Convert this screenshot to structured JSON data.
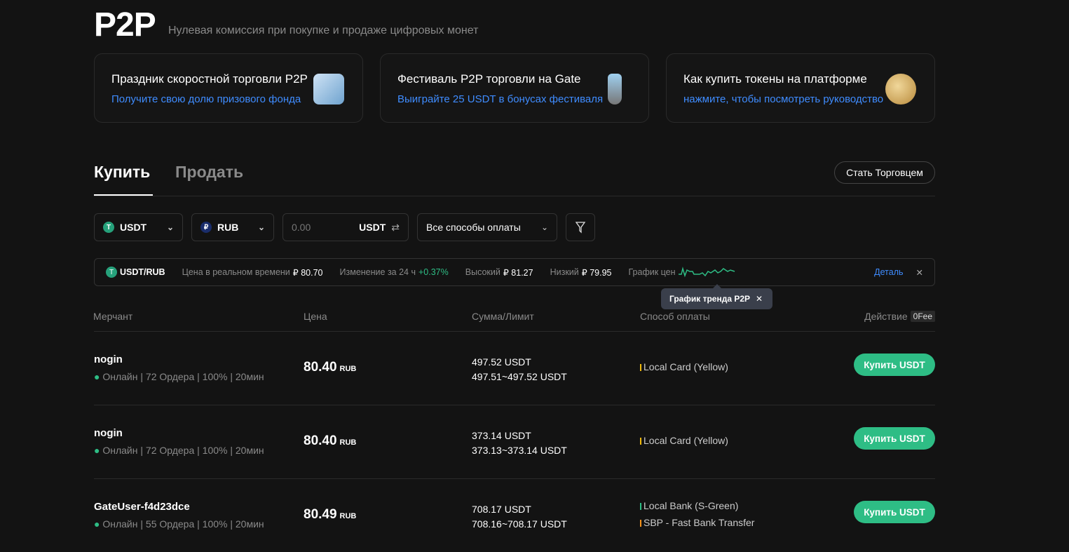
{
  "header": {
    "title": "P2P",
    "subtitle": "Нулевая комиссия при покупке и продаже цифровых монет"
  },
  "banners": [
    {
      "title": "Праздник скоростной торговли P2P",
      "subtitle": "Получите свою долю призового фонда",
      "icon": "gift-icon"
    },
    {
      "title": "Фестиваль P2P торговли на Gate",
      "subtitle": "Выиграйте 25 USDT в бонусах фестиваля",
      "icon": "trophy-icon"
    },
    {
      "title": "Как купить токены на платформе",
      "subtitle": "нажмите, чтобы посмотреть руководство",
      "icon": "coin-icon"
    }
  ],
  "tabs": {
    "buy": "Купить",
    "sell": "Продать",
    "merchant_button": "Стать Торговцем"
  },
  "filters": {
    "crypto": "USDT",
    "fiat": "RUB",
    "amount_placeholder": "0.00",
    "amount_unit": "USDT",
    "payment": "Все способы оплаты"
  },
  "ticker": {
    "pair": "USDT/RUB",
    "realtime_label": "Цена в реальном времени",
    "realtime": "₽ 80.70",
    "change_label": "Изменение за 24 ч",
    "change": "+0.37%",
    "high_label": "Высокий",
    "high": "₽ 81.27",
    "low_label": "Низкий",
    "low": "₽ 79.95",
    "chart_label": "График цен",
    "detail": "Деталь",
    "tooltip": "График тренда P2P"
  },
  "colors": {
    "accent": "#2ebd85",
    "link": "#3f8cff"
  },
  "table": {
    "headers": {
      "merchant": "Мерчант",
      "price": "Цена",
      "amount": "Сумма/Лимит",
      "payment": "Способ оплаты",
      "action": "Действие",
      "fee": "0Fee"
    },
    "rows": [
      {
        "name": "nogin",
        "stats": "Онлайн | 72 Ордера | 100% | 20мин",
        "price": "80.40",
        "currency": "RUB",
        "amount": "497.52 USDT",
        "limit": "497.51~497.52 USDT",
        "payments": [
          {
            "label": "Local Card (Yellow)",
            "color": "#f0b90b"
          }
        ],
        "button": "Купить USDT"
      },
      {
        "name": "nogin",
        "stats": "Онлайн | 72 Ордера | 100% | 20мин",
        "price": "80.40",
        "currency": "RUB",
        "amount": "373.14 USDT",
        "limit": "373.13~373.14 USDT",
        "payments": [
          {
            "label": "Local Card (Yellow)",
            "color": "#f0b90b"
          }
        ],
        "button": "Купить USDT"
      },
      {
        "name": "GateUser-f4d23dce",
        "stats": "Онлайн | 55 Ордера | 100% | 20мин",
        "price": "80.49",
        "currency": "RUB",
        "amount": "708.17 USDT",
        "limit": "708.16~708.17 USDT",
        "payments": [
          {
            "label": "Local Bank (S-Green)",
            "color": "#2ebd85"
          },
          {
            "label": "SBP - Fast Bank Transfer",
            "color": "#f7931a"
          }
        ],
        "button": "Купить USDT"
      }
    ]
  }
}
